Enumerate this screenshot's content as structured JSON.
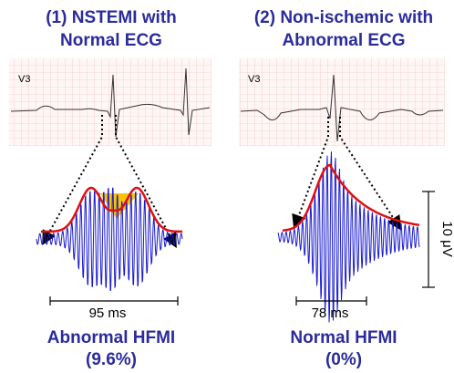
{
  "panels": [
    {
      "title_lines": [
        "(1) NSTEMI with",
        "Normal ECG"
      ],
      "lead": "V3",
      "duration": "95 ms",
      "result_lines": [
        "Abnormal HFMI",
        "(9.6%)"
      ]
    },
    {
      "title_lines": [
        "(2) Non-ischemic with",
        "Abnormal ECG"
      ],
      "lead": "V3",
      "duration": "78 ms",
      "result_lines": [
        "Normal HFMI",
        "(0%)"
      ]
    }
  ],
  "scale_bar": "10 μV"
}
